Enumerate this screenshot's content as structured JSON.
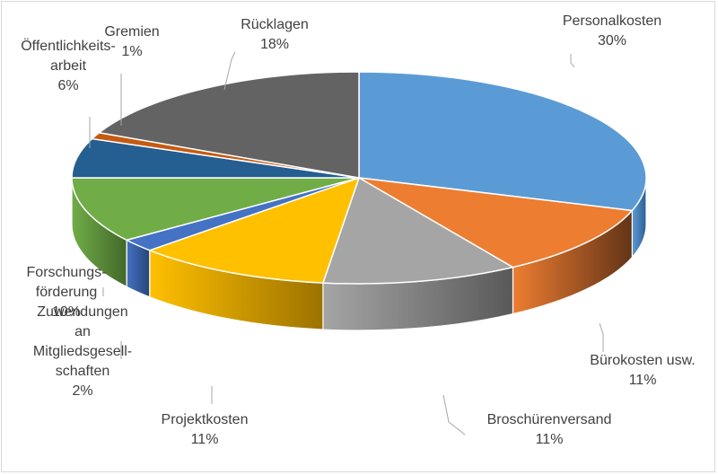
{
  "chart_data": {
    "type": "pie",
    "style": "3d-exploded-none",
    "title": "",
    "slices": [
      {
        "name": "Personalkosten",
        "label_lines": [
          "Personalkosten"
        ],
        "value": 30,
        "value_label": "30%",
        "color": "#5b9bd5",
        "side_color": "#2e5f93"
      },
      {
        "name": "Bürokosten usw.",
        "label_lines": [
          "Bürokosten usw."
        ],
        "value": 11,
        "value_label": "11%",
        "color": "#ed7d31",
        "side_color": "#633417"
      },
      {
        "name": "Broschürenversand",
        "label_lines": [
          "Broschürenversand"
        ],
        "value": 11,
        "value_label": "11%",
        "color": "#a5a5a5",
        "side_color": "#595959"
      },
      {
        "name": "Projektkosten",
        "label_lines": [
          "Projektkosten"
        ],
        "value": 11,
        "value_label": "11%",
        "color": "#ffc000",
        "side_color": "#9c7200"
      },
      {
        "name": "Zuwendungen an Mitgliedsgesellschaften",
        "label_lines": [
          "Zuwendungen",
          "an",
          "Mitgliedsgesell-",
          "schaften"
        ],
        "value": 2,
        "value_label": "2%",
        "color": "#4472c4",
        "side_color": "#264478"
      },
      {
        "name": "Forschungsförderung",
        "label_lines": [
          "Forschungs-",
          "förderung"
        ],
        "value": 10,
        "value_label": "10%",
        "color": "#70ad47",
        "side_color": "#43682b"
      },
      {
        "name": "Öffentlichkeitsarbeit",
        "label_lines": [
          "Öffentlichkeits-",
          "arbeit"
        ],
        "value": 6,
        "value_label": "6%",
        "color": "#255e91",
        "side_color": "#163857"
      },
      {
        "name": "Gremien",
        "label_lines": [
          "Gremien"
        ],
        "value": 1,
        "value_label": "1%",
        "color": "#c55a11",
        "side_color": "#6b310a"
      },
      {
        "name": "Rücklagen",
        "label_lines": [
          "Rücklagen"
        ],
        "value": 18,
        "value_label": "18%",
        "color": "#636363",
        "side_color": "#3a3a3a"
      }
    ],
    "legend": "none",
    "data_labels": "outside-with-leader-lines"
  }
}
